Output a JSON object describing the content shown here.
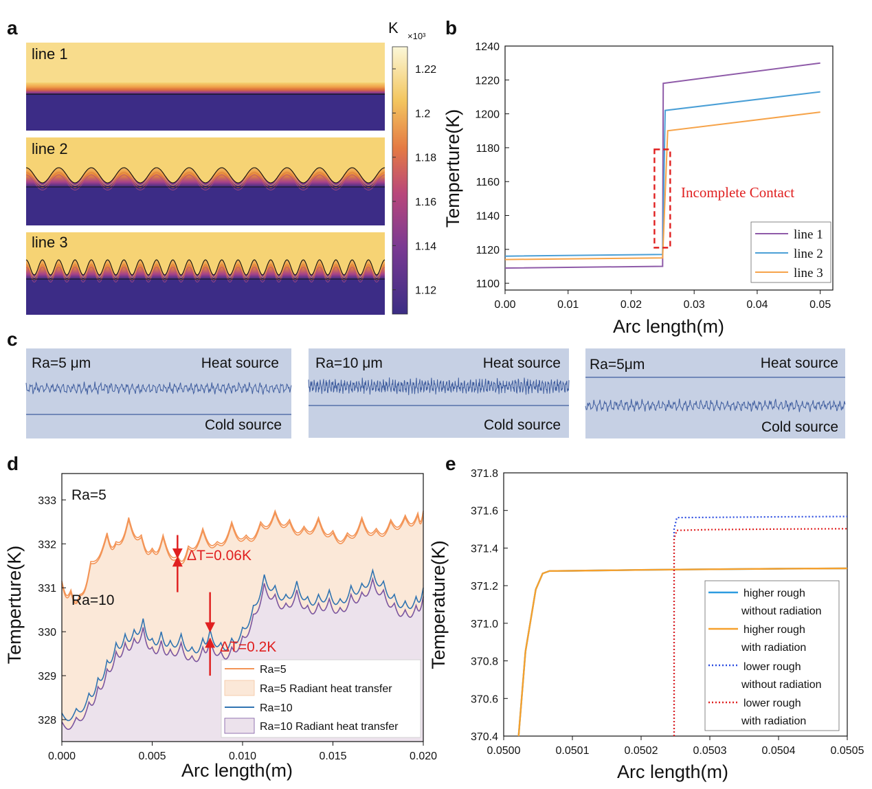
{
  "panel_a": {
    "letter": "a",
    "strip_labels": [
      "line 1",
      "line 2",
      "line 3"
    ],
    "colorbar": {
      "unit": "K",
      "multiplier": "×10³",
      "ticks": [
        "1.22",
        "1.2",
        "1.18",
        "1.16",
        "1.14",
        "1.12"
      ],
      "tick_values": [
        1.22,
        1.2,
        1.18,
        1.16,
        1.14,
        1.12
      ],
      "range": [
        1.109,
        1.23
      ],
      "colors": {
        "hot": "#fbf4c5",
        "warm": "#f3c660",
        "mid": "#e88734",
        "cool": "#a33e86",
        "cold": "#3b2d84"
      }
    },
    "colors": {
      "hot_region": "#f6d374",
      "cold_region": "#3c2c86",
      "interface_line": "#111111"
    }
  },
  "panel_c": {
    "letter": "c",
    "boxes": [
      {
        "ra_label": "Ra=5 μm",
        "heat_label": "Heat source",
        "cold_label": "Cold source"
      },
      {
        "ra_label": "Ra=10 μm",
        "heat_label": "Heat source",
        "cold_label": "Cold source"
      },
      {
        "ra_label": "Ra=5μm",
        "heat_label": "Heat source",
        "cold_label": "Cold source"
      }
    ],
    "colors": {
      "background": "#c6d0e4",
      "line": "#3f5d9e"
    }
  },
  "chart_data": [
    {
      "id": "b",
      "letter": "b",
      "type": "line",
      "xlabel": "Arc length(m)",
      "ylabel": "Temperture(K)",
      "xlim": [
        0,
        0.052
      ],
      "ylim": [
        1096,
        1240
      ],
      "xticks": [
        0,
        0.01,
        0.02,
        0.03,
        0.04,
        0.05
      ],
      "xtick_labels": [
        "0.00",
        "0.01",
        "0.02",
        "0.03",
        "0.04",
        "0.05"
      ],
      "yticks": [
        1100,
        1120,
        1140,
        1160,
        1180,
        1200,
        1220,
        1240
      ],
      "ytick_labels": [
        "1100",
        "1120",
        "1140",
        "1160",
        "1180",
        "1200",
        "1220",
        "1240"
      ],
      "series": [
        {
          "name": "line 1",
          "color": "#8e5aa8",
          "x": [
            0,
            0.025,
            0.0251,
            0.05
          ],
          "y": [
            1109,
            1110,
            1218,
            1230
          ]
        },
        {
          "name": "line 2",
          "color": "#4a9fd6",
          "x": [
            0,
            0.025,
            0.0254,
            0.05
          ],
          "y": [
            1116,
            1117,
            1202,
            1213
          ]
        },
        {
          "name": "line 3",
          "color": "#f6a349",
          "x": [
            0,
            0.025,
            0.0258,
            0.05
          ],
          "y": [
            1114,
            1115,
            1190,
            1201
          ]
        }
      ],
      "annotation": {
        "text": "Incomplete Contact",
        "color": "#e02020",
        "box_x": [
          0.0237,
          0.0262
        ],
        "box_y": [
          1121,
          1179
        ]
      },
      "legend": "bottom-right"
    },
    {
      "id": "d",
      "letter": "d",
      "type": "area",
      "xlabel": "Arc length(m)",
      "ylabel": "Temperture(K)",
      "xlim": [
        0,
        0.02
      ],
      "ylim": [
        327.5,
        333.6
      ],
      "xticks": [
        0,
        0.005,
        0.01,
        0.015,
        0.02
      ],
      "xtick_labels": [
        "0.000",
        "0.005",
        "0.010",
        "0.015",
        "0.020"
      ],
      "yticks": [
        328,
        329,
        330,
        331,
        332,
        333
      ],
      "ytick_labels": [
        "328",
        "329",
        "330",
        "331",
        "332",
        "333"
      ],
      "series": [
        {
          "name": "Ra=5",
          "color": "#f39456",
          "x": [
            0,
            0.0005,
            0.001,
            0.0016,
            0.0025,
            0.003,
            0.0037,
            0.0044,
            0.005,
            0.0056,
            0.0064,
            0.007,
            0.0078,
            0.0086,
            0.0094,
            0.0102,
            0.011,
            0.0118,
            0.0126,
            0.0134,
            0.0142,
            0.015,
            0.0158,
            0.0166,
            0.0174,
            0.0182,
            0.019,
            0.0197,
            0.02
          ],
          "y": [
            331.15,
            330.95,
            330.85,
            331.6,
            332.25,
            332.05,
            332.6,
            332.2,
            331.9,
            332.2,
            331.72,
            331.95,
            332.35,
            332.05,
            332.5,
            332.2,
            332.5,
            332.75,
            332.55,
            332.4,
            332.6,
            332.3,
            332.25,
            332.6,
            332.35,
            332.55,
            332.65,
            332.7,
            332.75
          ]
        },
        {
          "name": "Ra=5 Radiant heat transfer",
          "color": "#f39456",
          "fill": "#fbe8d8",
          "x": [
            0,
            0.0005,
            0.001,
            0.0016,
            0.0025,
            0.003,
            0.0037,
            0.0044,
            0.005,
            0.0056,
            0.0064,
            0.007,
            0.0078,
            0.0086,
            0.0094,
            0.0102,
            0.011,
            0.0118,
            0.0126,
            0.0134,
            0.0142,
            0.015,
            0.0158,
            0.0166,
            0.0174,
            0.0182,
            0.019,
            0.0197,
            0.02
          ],
          "y": [
            331.1,
            330.9,
            330.82,
            331.55,
            332.2,
            332.0,
            332.55,
            332.15,
            331.85,
            332.15,
            331.66,
            331.9,
            332.3,
            332.0,
            332.45,
            332.15,
            332.45,
            332.7,
            332.5,
            332.35,
            332.55,
            332.25,
            332.2,
            332.55,
            332.3,
            332.5,
            332.6,
            332.65,
            332.7
          ]
        },
        {
          "name": "Ra=10",
          "color": "#2f73b1",
          "x": [
            0,
            0.0008,
            0.0015,
            0.002,
            0.0025,
            0.003,
            0.0035,
            0.004,
            0.0045,
            0.005,
            0.0055,
            0.006,
            0.0066,
            0.0072,
            0.0078,
            0.0082,
            0.0088,
            0.0094,
            0.01,
            0.0106,
            0.0112,
            0.0118,
            0.0124,
            0.013,
            0.0136,
            0.0142,
            0.0148,
            0.0154,
            0.016,
            0.0166,
            0.0172,
            0.0178,
            0.0184,
            0.019,
            0.0196,
            0.02
          ],
          "y": [
            328.15,
            328.25,
            328.6,
            328.95,
            329.35,
            329.75,
            329.95,
            330.05,
            330.3,
            329.85,
            330.0,
            329.8,
            329.95,
            329.65,
            329.85,
            330.05,
            329.75,
            329.85,
            330.1,
            330.6,
            331.3,
            331.05,
            330.85,
            331.15,
            330.8,
            330.85,
            330.95,
            330.75,
            331.05,
            331.1,
            331.4,
            331.15,
            330.85,
            330.7,
            330.8,
            331.0
          ]
        },
        {
          "name": "Ra=10 Radiant heat transfer",
          "color": "#7a55a0",
          "fill": "#ece2ec",
          "x": [
            0,
            0.0008,
            0.0015,
            0.002,
            0.0025,
            0.003,
            0.0035,
            0.004,
            0.0045,
            0.005,
            0.0055,
            0.006,
            0.0066,
            0.0072,
            0.0078,
            0.0082,
            0.0088,
            0.0094,
            0.01,
            0.0106,
            0.0112,
            0.0118,
            0.0124,
            0.013,
            0.0136,
            0.0142,
            0.0148,
            0.0154,
            0.016,
            0.0166,
            0.0172,
            0.0178,
            0.0184,
            0.019,
            0.0196,
            0.02
          ],
          "y": [
            327.95,
            328.05,
            328.4,
            328.75,
            329.15,
            329.55,
            329.75,
            329.85,
            330.1,
            329.65,
            329.8,
            329.6,
            329.75,
            329.45,
            329.65,
            329.85,
            329.55,
            329.65,
            329.9,
            330.4,
            331.1,
            330.85,
            330.65,
            330.95,
            330.6,
            330.65,
            330.75,
            330.55,
            330.85,
            330.9,
            331.2,
            330.95,
            330.65,
            330.5,
            330.6,
            330.8
          ]
        }
      ],
      "labels": {
        "ra5": "Ra=5",
        "ra10": "Ra=10",
        "dt1": "ΔT=0.06K",
        "dt2": "ΔT=0.2K"
      },
      "arrows": [
        {
          "x": 0.0064,
          "y_top": 332.2,
          "y_bottom": 331.78,
          "direction": "down"
        },
        {
          "x": 0.0064,
          "y_top": 331.6,
          "y_bottom": 330.9,
          "direction": "up"
        },
        {
          "x": 0.0082,
          "y_top": 330.9,
          "y_bottom": 330.1,
          "direction": "down"
        },
        {
          "x": 0.0082,
          "y_top": 329.75,
          "y_bottom": 329.0,
          "direction": "up"
        }
      ],
      "annotation_color": "#e02020",
      "legend": "bottom-right"
    },
    {
      "id": "e",
      "letter": "e",
      "type": "line",
      "xlabel": "Arc length(m)",
      "ylabel": "Temperature(K)",
      "xlim": [
        0.05,
        0.0505
      ],
      "ylim": [
        370.4,
        371.8
      ],
      "xticks": [
        0.05,
        0.0501,
        0.0502,
        0.0503,
        0.0504,
        0.0505
      ],
      "xtick_labels": [
        "0.0500",
        "0.0501",
        "0.0502",
        "0.0503",
        "0.0504",
        "0.0505"
      ],
      "yticks": [
        370.4,
        370.6,
        370.8,
        371.0,
        371.2,
        371.4,
        371.6,
        371.8
      ],
      "ytick_labels": [
        "370.4",
        "370.6",
        "370.8",
        "371.0",
        "371.2",
        "371.4",
        "371.6",
        "371.8"
      ],
      "series": [
        {
          "name": "higher rough without radiation",
          "legend_lines": [
            "higher rough",
            "without radiation"
          ],
          "color": "#2d9be0",
          "dash": "solid",
          "x": [
            0.0500217,
            0.0500317,
            0.0500467,
            0.0500567,
            0.0500667,
            0.0501,
            0.0502,
            0.0503,
            0.0504,
            0.0505
          ],
          "y": [
            370.4,
            370.85,
            371.18,
            371.265,
            371.278,
            371.279,
            371.284,
            371.287,
            371.29,
            371.292
          ]
        },
        {
          "name": "higher rough with radiation",
          "legend_lines": [
            "higher rough",
            "with radiation"
          ],
          "color": "#f6a02c",
          "dash": "solid",
          "x": [
            0.0500217,
            0.0500317,
            0.0500467,
            0.0500567,
            0.0500667,
            0.0501,
            0.0502,
            0.0503,
            0.0504,
            0.0505
          ],
          "y": [
            370.4,
            370.85,
            371.18,
            371.265,
            371.278,
            371.279,
            371.284,
            371.287,
            371.29,
            371.292
          ]
        },
        {
          "name": "lower rough without radiation",
          "legend_lines": [
            "lower rough",
            "without radiation"
          ],
          "color": "#2b4ce0",
          "dash": "dot",
          "x": [
            0.050248,
            0.050248,
            0.050252,
            0.0503,
            0.0504,
            0.0505
          ],
          "y": [
            370.4,
            371.5,
            371.562,
            371.563,
            371.566,
            371.568
          ]
        },
        {
          "name": "lower rough with radiation",
          "legend_lines": [
            "lower rough",
            "with radiation"
          ],
          "color": "#e02020",
          "dash": "dot",
          "x": [
            0.050248,
            0.050248,
            0.050252,
            0.0503,
            0.0504,
            0.0505
          ],
          "y": [
            370.4,
            371.45,
            371.494,
            371.498,
            371.501,
            371.503
          ]
        }
      ],
      "legend": "bottom-right"
    }
  ]
}
